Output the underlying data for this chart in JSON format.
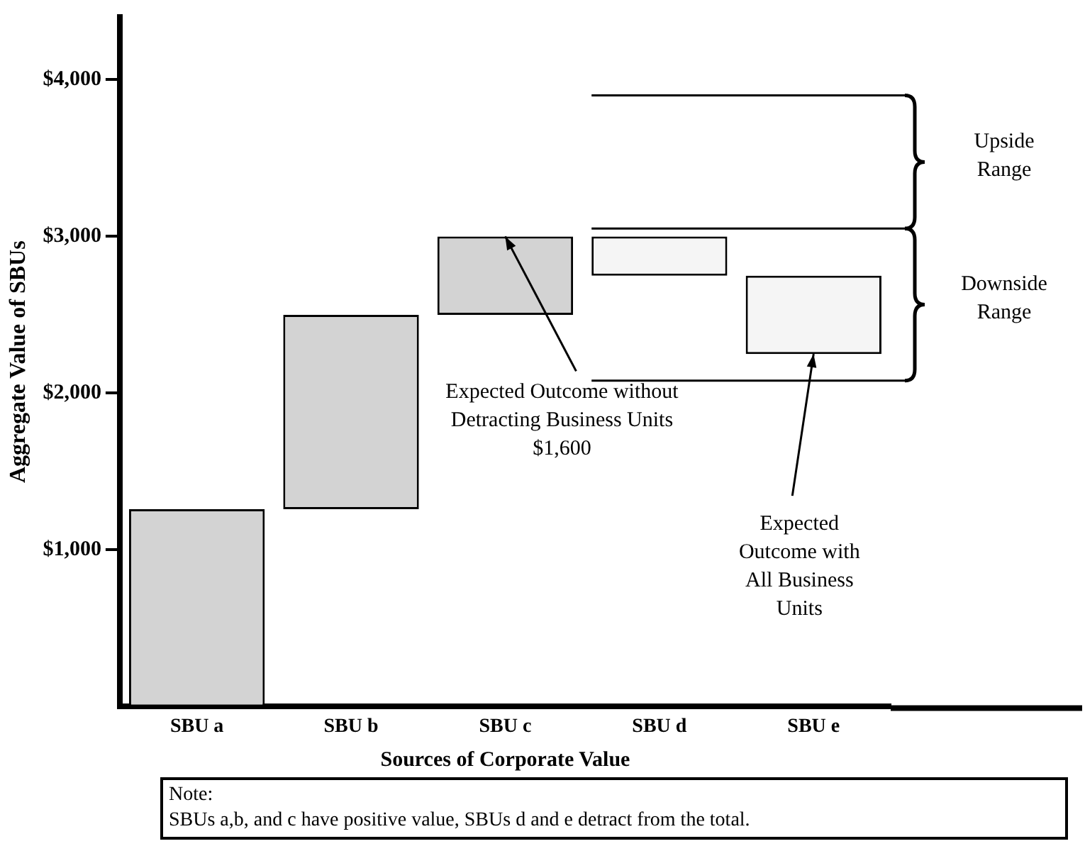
{
  "chart_data": {
    "type": "bar",
    "xlabel": "Sources of Corporate Value",
    "ylabel": "Aggregate Value of SBUs",
    "categories": [
      "SBU a",
      "SBU b",
      "SBU c",
      "SBU d",
      "SBU e"
    ],
    "values": [
      1260,
      1240,
      500,
      -250,
      -500
    ],
    "base": [
      0,
      1260,
      2500,
      3000,
      2750
    ],
    "colors": [
      "#d3d3d3",
      "#d3d3d3",
      "#d3d3d3",
      "#f5f5f5",
      "#f5f5f5"
    ],
    "ylim": [
      0,
      4400
    ],
    "yticks": [
      {
        "value": 1000,
        "label": "$1,000"
      },
      {
        "value": 2000,
        "label": "$2,000"
      },
      {
        "value": 3000,
        "label": "$3,000"
      },
      {
        "value": 4000,
        "label": "$4,000"
      }
    ],
    "ref_lines": [
      {
        "axis": "y",
        "value": 3900
      },
      {
        "axis": "y",
        "value": 3050
      },
      {
        "axis": "y",
        "value": 2080
      }
    ],
    "annotations": [
      {
        "text": "Expected Outcome without Detracting Business Units $1,600",
        "x": "SBU c",
        "y": 3000
      },
      {
        "text": "Expected Outcome with All Business Units",
        "x": "SBU e",
        "y": 2250
      },
      "Upside Range",
      "Downside Range",
      "Note:\nSBUs a,b, and c have positive value, SBUs d and e detract from the total."
    ],
    "grid": false,
    "legend": false
  }
}
